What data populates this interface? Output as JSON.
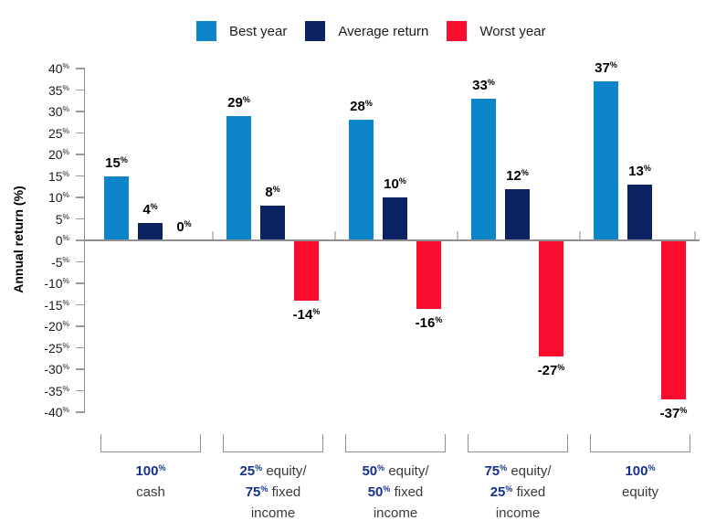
{
  "legend": {
    "items": [
      {
        "label": "Best year",
        "color": "#0b85c8",
        "icon": "square-swatch"
      },
      {
        "label": "Average return",
        "color": "#0c2363",
        "icon": "square-swatch"
      },
      {
        "label": "Worst year",
        "color": "#fa0c2e",
        "icon": "square-swatch"
      }
    ]
  },
  "chart_data": {
    "type": "bar",
    "title": "",
    "ylabel": "Annual return (%)",
    "xlabel": "",
    "unit": "%",
    "ylim": [
      -40,
      40
    ],
    "ytick_step": 5,
    "grid": false,
    "legend_position": "top",
    "categories": [
      "100% cash",
      "25% equity/ 75% fixed income",
      "50% equity/ 50% fixed income",
      "75% equity/ 25% fixed income",
      "100% equity"
    ],
    "series": [
      {
        "name": "Best year",
        "color": "#0b85c8",
        "values": [
          15,
          29,
          28,
          33,
          37
        ]
      },
      {
        "name": "Average return",
        "color": "#0c2363",
        "values": [
          4,
          8,
          10,
          12,
          13
        ]
      },
      {
        "name": "Worst year",
        "color": "#fa0c2e",
        "values": [
          0,
          -14,
          -16,
          -27,
          -37
        ]
      }
    ],
    "category_label_lines": [
      [
        [
          {
            "t": "100",
            "pct": true
          }
        ],
        [
          {
            "t": "cash"
          }
        ]
      ],
      [
        [
          {
            "t": "25",
            "pct": true
          },
          {
            "t": " equity/"
          }
        ],
        [
          {
            "t": "75",
            "pct": true
          },
          {
            "t": " fixed"
          }
        ],
        [
          {
            "t": "income"
          }
        ]
      ],
      [
        [
          {
            "t": "50",
            "pct": true
          },
          {
            "t": " equity/"
          }
        ],
        [
          {
            "t": "50",
            "pct": true
          },
          {
            "t": " fixed"
          }
        ],
        [
          {
            "t": "income"
          }
        ]
      ],
      [
        [
          {
            "t": "75",
            "pct": true
          },
          {
            "t": " equity/"
          }
        ],
        [
          {
            "t": "25",
            "pct": true
          },
          {
            "t": " fixed"
          }
        ],
        [
          {
            "t": "income"
          }
        ]
      ],
      [
        [
          {
            "t": "100",
            "pct": true
          }
        ],
        [
          {
            "t": "equity"
          }
        ]
      ]
    ],
    "colors": {
      "best_year": "#0b85c8",
      "average_return": "#0c2363",
      "worst_year": "#fa0c2e",
      "category_pct_text": "#16318c",
      "category_text": "#3a3a3a",
      "axis_line": "#8f8f8f",
      "group_tick": "#c4c4c4",
      "tick_text": "#1c1c1c",
      "data_label_text": "#000000"
    }
  }
}
